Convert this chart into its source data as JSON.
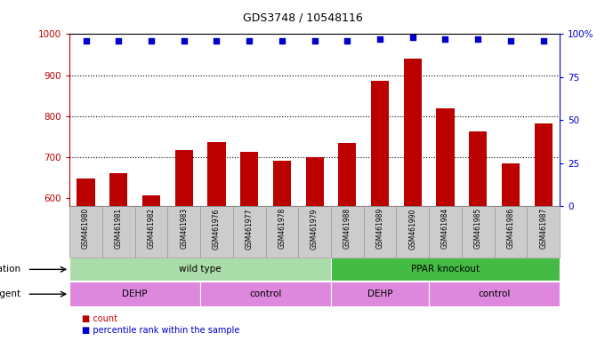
{
  "title": "GDS3748 / 10548116",
  "samples": [
    "GSM461980",
    "GSM461981",
    "GSM461982",
    "GSM461983",
    "GSM461976",
    "GSM461977",
    "GSM461978",
    "GSM461979",
    "GSM461988",
    "GSM461989",
    "GSM461990",
    "GSM461984",
    "GSM461985",
    "GSM461986",
    "GSM461987"
  ],
  "counts": [
    648,
    660,
    607,
    718,
    737,
    712,
    692,
    700,
    735,
    887,
    940,
    818,
    763,
    685,
    782
  ],
  "percentile_ranks": [
    96,
    96,
    96,
    96,
    96,
    96,
    96,
    96,
    96,
    97,
    98,
    97,
    97,
    96,
    96
  ],
  "ylim_left": [
    580,
    1000
  ],
  "ylim_right": [
    0,
    100
  ],
  "yticks_left": [
    600,
    700,
    800,
    900,
    1000
  ],
  "yticks_right": [
    0,
    25,
    50,
    75,
    100
  ],
  "grid_lines": [
    700,
    800,
    900
  ],
  "bar_color": "#bb0000",
  "dot_color": "#0000cc",
  "xticklabel_bg": "#cccccc",
  "xticklabel_border": "#999999",
  "genotype_groups": [
    {
      "label": "wild type",
      "start": 0,
      "end": 8,
      "color": "#aaddaa"
    },
    {
      "label": "PPAR knockout",
      "start": 8,
      "end": 15,
      "color": "#44bb44"
    }
  ],
  "agent_groups": [
    {
      "label": "DEHP",
      "start": 0,
      "end": 4,
      "color": "#dd88dd"
    },
    {
      "label": "control",
      "start": 4,
      "end": 8,
      "color": "#dd88dd"
    },
    {
      "label": "DEHP",
      "start": 8,
      "end": 11,
      "color": "#dd88dd"
    },
    {
      "label": "control",
      "start": 11,
      "end": 15,
      "color": "#dd88dd"
    }
  ],
  "legend_count_color": "#bb0000",
  "legend_pct_color": "#0000cc",
  "legend_count_label": "count",
  "legend_pct_label": "percentile rank within the sample"
}
